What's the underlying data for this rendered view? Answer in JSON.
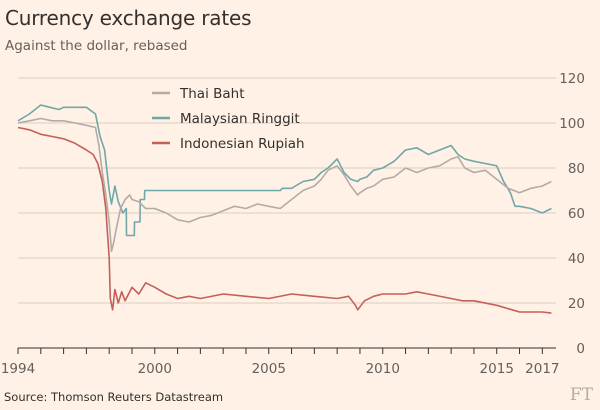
{
  "chart_data": {
    "type": "line",
    "title": "Currency exchange rates",
    "subtitle": "Against the dollar, rebased",
    "source": "Source: Thomson Reuters Datastream",
    "logo": "FT",
    "xlim": [
      1994,
      2017.6
    ],
    "ylim": [
      0,
      120
    ],
    "y_ticks": [
      0,
      20,
      40,
      60,
      80,
      100,
      120
    ],
    "x_ticks": [
      {
        "value": 1994,
        "label": "1994"
      },
      {
        "value": 2000,
        "label": "2000"
      },
      {
        "value": 2005,
        "label": "2005"
      },
      {
        "value": 2010,
        "label": "2010"
      },
      {
        "value": 2015,
        "label": "2015"
      },
      {
        "value": 2017,
        "label": "2017"
      }
    ],
    "grid": true,
    "legend_position": "top-center",
    "series": [
      {
        "name": "Thai Baht",
        "color": "#b3aca6",
        "x": [
          1994,
          1994.5,
          1995,
          1995.5,
          1996,
          1996.5,
          1997,
          1997.4,
          1997.55,
          1997.7,
          1997.85,
          1998,
          1998.1,
          1998.2,
          1998.35,
          1998.5,
          1998.7,
          1998.9,
          1999,
          1999.3,
          1999.6,
          2000,
          2000.5,
          2001,
          2001.5,
          2002,
          2002.5,
          2003,
          2003.5,
          2004,
          2004.5,
          2005,
          2005.5,
          2006,
          2006.5,
          2007,
          2007.3,
          2007.6,
          2008,
          2008.3,
          2008.6,
          2008.9,
          2009,
          2009.3,
          2009.6,
          2010,
          2010.5,
          2011,
          2011.5,
          2012,
          2012.5,
          2013,
          2013.3,
          2013.6,
          2014,
          2014.5,
          2015,
          2015.5,
          2016,
          2016.5,
          2017,
          2017.4
        ],
        "y": [
          100,
          101,
          102,
          101,
          101,
          100,
          99,
          98,
          90,
          78,
          68,
          56,
          43,
          47,
          55,
          62,
          66,
          68,
          66,
          65,
          62,
          62,
          60,
          57,
          56,
          58,
          59,
          61,
          63,
          62,
          64,
          63,
          62,
          66,
          70,
          72,
          75,
          79,
          81,
          77,
          72,
          68,
          69,
          71,
          72,
          75,
          76,
          80,
          78,
          80,
          81,
          84,
          85,
          80,
          78,
          79,
          75,
          71,
          69,
          71,
          72,
          74
        ]
      },
      {
        "name": "Malaysian Ringgit",
        "color": "#6fa8a8",
        "x": [
          1994,
          1994.5,
          1995,
          1995.4,
          1995.8,
          1996,
          1996.5,
          1997,
          1997.4,
          1997.6,
          1997.8,
          1998,
          1998.1,
          1998.25,
          1998.4,
          1998.6,
          1998.75,
          1998.76,
          1999.1,
          1999.11,
          1999.35,
          1999.36,
          1999.55,
          1999.56,
          2000,
          2001,
          2002,
          2003,
          2004,
          2005,
          2005.5,
          2005.6,
          2006,
          2006.5,
          2007,
          2007.3,
          2007.6,
          2008,
          2008.3,
          2008.6,
          2008.9,
          2009,
          2009.3,
          2009.6,
          2010,
          2010.5,
          2011,
          2011.5,
          2012,
          2012.5,
          2013,
          2013.3,
          2013.6,
          2014,
          2014.5,
          2015,
          2015.3,
          2015.6,
          2015.8,
          2016,
          2016.5,
          2017,
          2017.4
        ],
        "y": [
          101,
          104,
          108,
          107,
          106,
          107,
          107,
          107,
          104,
          94,
          88,
          70,
          64,
          72,
          65,
          60,
          62,
          50,
          50,
          56,
          56,
          66,
          66,
          70,
          70,
          70,
          70,
          70,
          70,
          70,
          70,
          71,
          71,
          74,
          75,
          78,
          80,
          84,
          78,
          75,
          74,
          75,
          76,
          79,
          80,
          83,
          88,
          89,
          86,
          88,
          90,
          86,
          84,
          83,
          82,
          81,
          74,
          69,
          63,
          63,
          62,
          60,
          62
        ]
      },
      {
        "name": "Indonesian Rupiah",
        "color": "#c4605a",
        "x": [
          1994,
          1994.5,
          1995,
          1995.5,
          1996,
          1996.5,
          1997,
          1997.3,
          1997.5,
          1997.7,
          1997.85,
          1998,
          1998.05,
          1998.15,
          1998.25,
          1998.4,
          1998.55,
          1998.7,
          1999,
          1999.3,
          1999.6,
          2000,
          2000.5,
          2001,
          2001.5,
          2002,
          2003,
          2004,
          2005,
          2006,
          2007,
          2008,
          2008.5,
          2008.8,
          2008.9,
          2009.2,
          2009.6,
          2010,
          2011,
          2011.5,
          2012,
          2013,
          2013.5,
          2014,
          2015,
          2016,
          2017,
          2017.4
        ],
        "y": [
          98,
          97,
          95,
          94,
          93,
          91,
          88,
          86,
          82,
          74,
          62,
          40,
          22,
          17,
          26,
          20,
          25,
          21,
          27,
          24,
          29,
          27,
          24,
          22,
          23,
          22,
          24,
          23,
          22,
          24,
          23,
          22,
          23,
          19,
          17,
          21,
          23,
          24,
          24,
          25,
          24,
          22,
          21,
          21,
          19,
          16,
          16,
          15.5
        ]
      }
    ]
  }
}
